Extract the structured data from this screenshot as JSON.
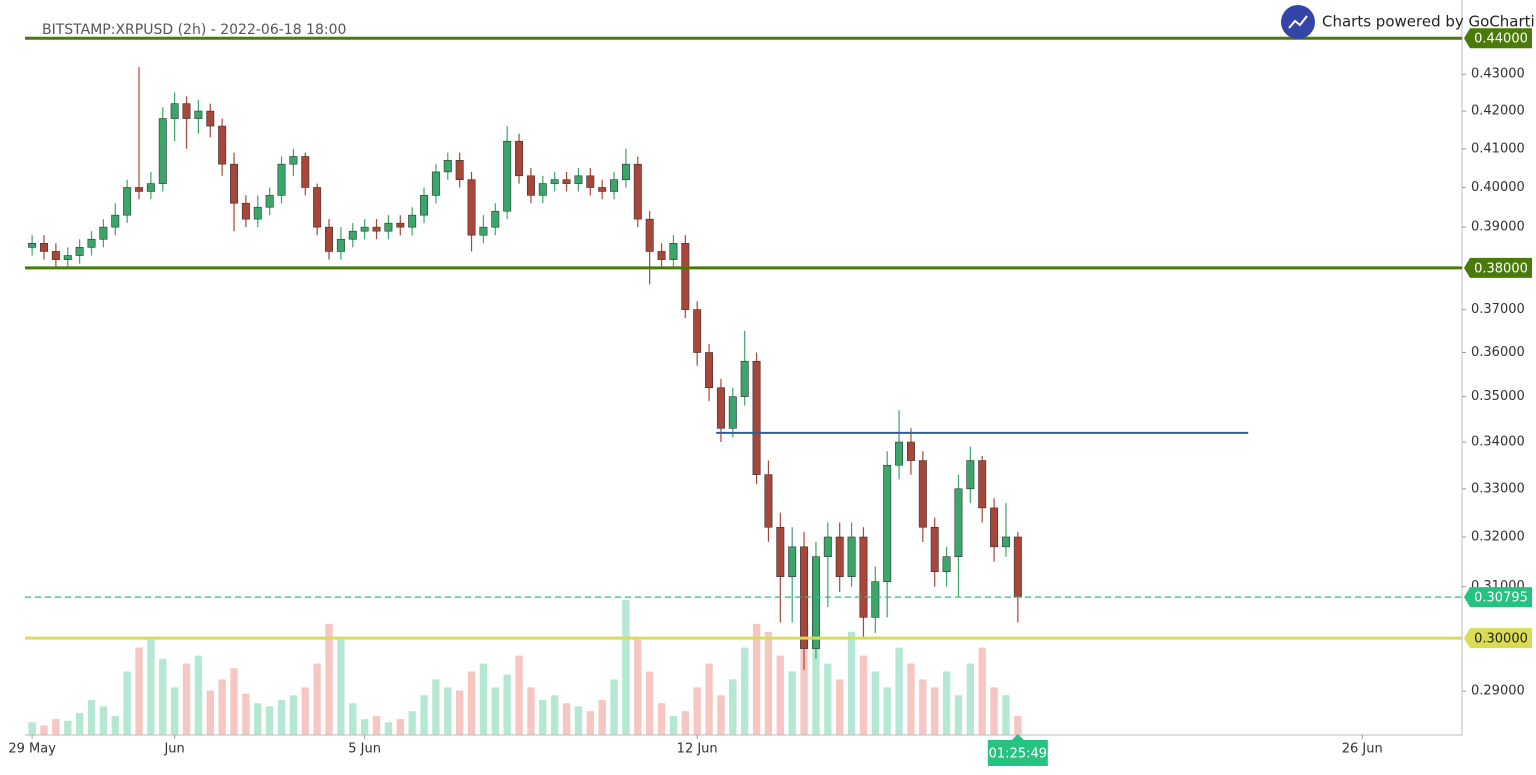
{
  "chart_data": {
    "type": "candlestick",
    "title": "BITSTAMP:XRPUSD (2h) - 2022-06-18 18:00",
    "branding": "Charts powered by GoCharting",
    "countdown": "01:25:49",
    "log_scale": true,
    "xlim": [
      -0.15,
      30.1
    ],
    "xticks": [
      {
        "value": 0,
        "label": "29 May"
      },
      {
        "value": 3,
        "label": "Jun"
      },
      {
        "value": 7,
        "label": "5 Jun"
      },
      {
        "value": 14,
        "label": "12 Jun"
      },
      {
        "value": 28,
        "label": "26 Jun"
      }
    ],
    "ylim": [
      0.282,
      0.448
    ],
    "yticks": [
      {
        "value": 0.29,
        "label": "0.29000"
      },
      {
        "value": 0.31,
        "label": "0.31000"
      },
      {
        "value": 0.32,
        "label": "0.32000"
      },
      {
        "value": 0.33,
        "label": "0.33000"
      },
      {
        "value": 0.34,
        "label": "0.34000"
      },
      {
        "value": 0.35,
        "label": "0.35000"
      },
      {
        "value": 0.36,
        "label": "0.36000"
      },
      {
        "value": 0.37,
        "label": "0.37000"
      },
      {
        "value": 0.39,
        "label": "0.39000"
      },
      {
        "value": 0.4,
        "label": "0.40000"
      },
      {
        "value": 0.41,
        "label": "0.41000"
      },
      {
        "value": 0.42,
        "label": "0.42000"
      },
      {
        "value": 0.43,
        "label": "0.43000"
      }
    ],
    "levels": [
      {
        "value": 0.44,
        "label": "0.44000",
        "color": "#4a7a0a",
        "style": "solid"
      },
      {
        "value": 0.38,
        "label": "0.38000",
        "color": "#4a7a0a",
        "style": "solid"
      },
      {
        "value": 0.3,
        "label": "0.30000",
        "color": "#d9dc55",
        "style": "solid"
      },
      {
        "value": 0.30795,
        "label": "0.30795",
        "color": "#26c281",
        "style": "dashed"
      }
    ],
    "trendline": {
      "y": 0.342,
      "x": [
        14.4,
        25.6
      ],
      "color": "#2f5f98"
    },
    "up_color": "#3aa66a",
    "down_color": "#a8463a",
    "up_volume_color": "#b5e8d2",
    "down_volume_color": "#f6c6c3",
    "x": [
      0,
      0.25,
      0.5,
      0.75,
      1,
      1.25,
      1.5,
      1.75,
      2,
      2.25,
      2.5,
      2.75,
      3,
      3.25,
      3.5,
      3.75,
      4,
      4.25,
      4.5,
      4.75,
      5,
      5.25,
      5.5,
      5.75,
      6,
      6.25,
      6.5,
      6.75,
      7,
      7.25,
      7.5,
      7.75,
      8,
      8.25,
      8.5,
      8.75,
      9,
      9.25,
      9.5,
      9.75,
      10,
      10.25,
      10.5,
      10.75,
      11,
      11.25,
      11.5,
      11.75,
      12,
      12.25,
      12.5,
      12.75,
      13,
      13.25,
      13.5,
      13.75,
      14,
      14.25,
      14.5,
      14.75,
      15,
      15.25,
      15.5,
      15.75,
      16,
      16.25,
      16.5,
      16.75,
      17,
      17.25,
      17.5,
      17.75,
      18,
      18.25,
      18.5,
      18.75,
      19,
      19.25,
      19.5,
      19.75,
      20,
      20.25,
      20.5,
      20.75
    ],
    "open": [
      0.385,
      0.386,
      0.384,
      0.382,
      0.383,
      0.385,
      0.387,
      0.39,
      0.393,
      0.4,
      0.399,
      0.401,
      0.418,
      0.422,
      0.418,
      0.42,
      0.416,
      0.406,
      0.396,
      0.392,
      0.395,
      0.398,
      0.406,
      0.408,
      0.4,
      0.39,
      0.384,
      0.387,
      0.389,
      0.39,
      0.389,
      0.391,
      0.39,
      0.393,
      0.398,
      0.404,
      0.407,
      0.402,
      0.388,
      0.39,
      0.394,
      0.412,
      0.403,
      0.398,
      0.401,
      0.402,
      0.401,
      0.403,
      0.4,
      0.399,
      0.402,
      0.406,
      0.392,
      0.384,
      0.382,
      0.386,
      0.37,
      0.36,
      0.352,
      0.343,
      0.35,
      0.358,
      0.333,
      0.322,
      0.312,
      0.318,
      0.298,
      0.316,
      0.32,
      0.312,
      0.32,
      0.304,
      0.311,
      0.335,
      0.34,
      0.336,
      0.322,
      0.313,
      0.316,
      0.33,
      0.336,
      0.326,
      0.318,
      0.32
    ],
    "high": [
      0.388,
      0.388,
      0.386,
      0.385,
      0.387,
      0.389,
      0.392,
      0.396,
      0.402,
      0.432,
      0.404,
      0.421,
      0.425,
      0.424,
      0.423,
      0.422,
      0.418,
      0.409,
      0.398,
      0.398,
      0.4,
      0.408,
      0.41,
      0.409,
      0.401,
      0.392,
      0.39,
      0.391,
      0.392,
      0.392,
      0.393,
      0.393,
      0.395,
      0.4,
      0.406,
      0.409,
      0.409,
      0.404,
      0.393,
      0.396,
      0.416,
      0.414,
      0.405,
      0.403,
      0.404,
      0.404,
      0.405,
      0.405,
      0.402,
      0.404,
      0.41,
      0.408,
      0.394,
      0.386,
      0.388,
      0.388,
      0.372,
      0.362,
      0.354,
      0.352,
      0.365,
      0.36,
      0.336,
      0.325,
      0.322,
      0.321,
      0.319,
      0.323,
      0.323,
      0.323,
      0.322,
      0.314,
      0.338,
      0.347,
      0.343,
      0.338,
      0.324,
      0.318,
      0.333,
      0.339,
      0.337,
      0.328,
      0.327,
      0.321
    ],
    "low": [
      0.383,
      0.382,
      0.38,
      0.38,
      0.381,
      0.383,
      0.385,
      0.388,
      0.391,
      0.397,
      0.397,
      0.399,
      0.412,
      0.41,
      0.414,
      0.413,
      0.403,
      0.389,
      0.39,
      0.39,
      0.393,
      0.396,
      0.403,
      0.398,
      0.388,
      0.382,
      0.382,
      0.385,
      0.387,
      0.387,
      0.387,
      0.388,
      0.388,
      0.391,
      0.396,
      0.402,
      0.4,
      0.384,
      0.386,
      0.388,
      0.392,
      0.401,
      0.396,
      0.396,
      0.399,
      0.399,
      0.399,
      0.398,
      0.397,
      0.397,
      0.4,
      0.39,
      0.376,
      0.38,
      0.38,
      0.368,
      0.357,
      0.349,
      0.34,
      0.341,
      0.348,
      0.331,
      0.319,
      0.303,
      0.303,
      0.294,
      0.296,
      0.306,
      0.309,
      0.31,
      0.3,
      0.301,
      0.304,
      0.332,
      0.333,
      0.319,
      0.31,
      0.31,
      0.308,
      0.327,
      0.323,
      0.315,
      0.316,
      0.303
    ],
    "close": [
      0.386,
      0.384,
      0.382,
      0.383,
      0.385,
      0.387,
      0.39,
      0.393,
      0.4,
      0.399,
      0.401,
      0.418,
      0.422,
      0.418,
      0.42,
      0.416,
      0.406,
      0.396,
      0.392,
      0.395,
      0.398,
      0.406,
      0.408,
      0.4,
      0.39,
      0.384,
      0.387,
      0.389,
      0.39,
      0.389,
      0.391,
      0.39,
      0.393,
      0.398,
      0.404,
      0.407,
      0.402,
      0.388,
      0.39,
      0.394,
      0.412,
      0.403,
      0.398,
      0.401,
      0.402,
      0.401,
      0.403,
      0.4,
      0.399,
      0.402,
      0.406,
      0.392,
      0.384,
      0.382,
      0.386,
      0.37,
      0.36,
      0.352,
      0.343,
      0.35,
      0.358,
      0.333,
      0.322,
      0.312,
      0.318,
      0.298,
      0.316,
      0.32,
      0.312,
      0.32,
      0.304,
      0.311,
      0.335,
      0.34,
      0.336,
      0.322,
      0.313,
      0.316,
      0.33,
      0.336,
      0.326,
      0.318,
      0.32,
      0.30795
    ],
    "volume": [
      8,
      6,
      10,
      9,
      14,
      22,
      18,
      12,
      40,
      55,
      60,
      48,
      30,
      45,
      50,
      28,
      35,
      42,
      26,
      20,
      18,
      22,
      25,
      30,
      45,
      70,
      60,
      20,
      10,
      12,
      8,
      10,
      15,
      25,
      35,
      30,
      28,
      40,
      45,
      30,
      38,
      50,
      30,
      22,
      25,
      20,
      18,
      15,
      22,
      35,
      85,
      60,
      40,
      20,
      12,
      15,
      30,
      45,
      25,
      35,
      55,
      70,
      65,
      50,
      40,
      60,
      55,
      45,
      35,
      65,
      50,
      40,
      30,
      55,
      45,
      35,
      30,
      40,
      25,
      45,
      55,
      30,
      25,
      12
    ]
  }
}
